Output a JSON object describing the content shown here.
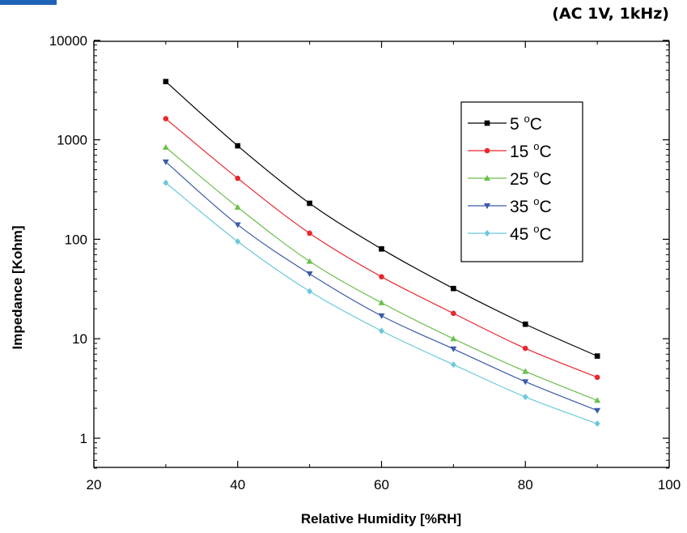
{
  "header": {
    "conditions": "(AC 1V, 1kHz)"
  },
  "chart_data": {
    "type": "line",
    "title": "",
    "xlabel": "Relative Humidity [%RH]",
    "ylabel": "Impedance [Kohm]",
    "xlim": [
      20,
      100
    ],
    "ylim": [
      0.5,
      10000
    ],
    "yscale": "log",
    "grid": false,
    "legend_position": "top-right",
    "x_ticks": [
      20,
      40,
      60,
      80,
      100
    ],
    "x_tick_labels": [
      "20",
      "40",
      "60",
      "80",
      "100"
    ],
    "y_ticks": [
      1,
      10,
      100,
      1000,
      10000
    ],
    "y_tick_labels": [
      "1",
      "10",
      "100",
      "1000",
      "10000"
    ],
    "x": [
      30,
      40,
      50,
      60,
      70,
      80,
      90
    ],
    "series": [
      {
        "name": "5 °C",
        "display_value": "5",
        "color": "#000000",
        "marker": "square",
        "values": [
          3850,
          870,
          230,
          80,
          32,
          14,
          6.7
        ]
      },
      {
        "name": "15 °C",
        "display_value": "15",
        "color": "#e8272e",
        "marker": "circle",
        "values": [
          1630,
          410,
          115,
          42,
          18,
          8.0,
          4.1
        ]
      },
      {
        "name": "25 °C",
        "display_value": "25",
        "color": "#6cbf4c",
        "marker": "triangle-up",
        "values": [
          840,
          210,
          60,
          23,
          10,
          4.7,
          2.4
        ]
      },
      {
        "name": "35 °C",
        "display_value": "35",
        "color": "#3b5aa8",
        "marker": "triangle-down",
        "values": [
          600,
          140,
          45,
          17,
          7.9,
          3.7,
          1.9
        ]
      },
      {
        "name": "45 °C",
        "display_value": "45",
        "color": "#6cc8dc",
        "marker": "diamond",
        "values": [
          370,
          95,
          30,
          12,
          5.5,
          2.6,
          1.4
        ]
      }
    ],
    "legend_unit": "°C"
  },
  "colors": {
    "corner_accent": "#1e63b8"
  }
}
